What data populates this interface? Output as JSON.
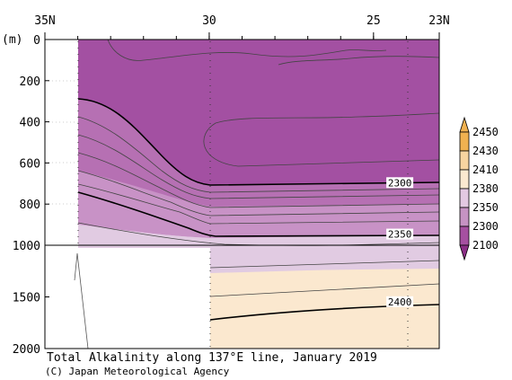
{
  "chart_data": {
    "type": "heatmap",
    "title": "Total Alkalinity along 137°E line, January 2019",
    "credit": "(C) Japan Meteorological Agency",
    "ylabel": "(m)",
    "xlim_deg_n": [
      35,
      23
    ],
    "x_ticks": [
      {
        "lat": 35,
        "label": "35N"
      },
      {
        "lat": 30,
        "label": "30"
      },
      {
        "lat": 25,
        "label": "25"
      },
      {
        "lat": 23,
        "label": "23N"
      }
    ],
    "y_ticks_upper": [
      0,
      200,
      400,
      600,
      800,
      1000
    ],
    "y_ticks_lower": [
      1500,
      2000
    ],
    "ylim": [
      0,
      2000
    ],
    "scale_break_depth": 1000,
    "contour_labels": [
      {
        "value": "2300",
        "lat": 24.2,
        "depth": 700
      },
      {
        "value": "2350",
        "lat": 24.2,
        "depth": 950
      },
      {
        "value": "2400",
        "lat": 24.2,
        "depth": 1555
      }
    ],
    "legend": {
      "position": "right",
      "levels": [
        "2100",
        "2300",
        "2350",
        "2380",
        "2410",
        "2430",
        "2450"
      ],
      "colors": [
        "#8b2e86",
        "#a650a1",
        "#c693c3",
        "#e3c9e2",
        "#fbe9d0",
        "#f7d4a0",
        "#f0b150"
      ]
    },
    "colors": {
      "band_2100_2300": "#a350a2",
      "band_2300_2320": "#b670b3",
      "band_2320_2350": "#c892c6",
      "band_2350_2380": "#e1cbe2",
      "band_2380_2410": "#fbe8cf",
      "no_data": "#ffffff"
    }
  }
}
